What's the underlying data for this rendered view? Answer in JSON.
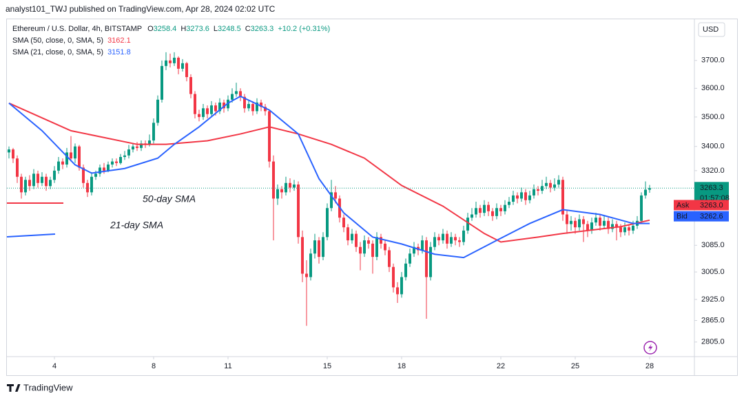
{
  "header": "analyst101_TWJ published on TradingView.com, Apr 28, 2024 02:02 UTC",
  "footer": "TradingView",
  "chart_data": {
    "type": "candlestick",
    "title": "Ethereum / U.S. Dollar, 4h, BITSTAMP",
    "ohlc_labels": [
      "O",
      "H",
      "L",
      "C"
    ],
    "change": "+10.2 (+0.31%)",
    "currency": "USD",
    "countdown": "01:57:08",
    "ask_label": "Ask",
    "ask": 3263.0,
    "ask_text": "3263.0",
    "bid_label": "Bid",
    "bid": 3262.6,
    "up_color": "#089981",
    "down_color": "#f23645",
    "log_scale": true,
    "grid": false,
    "ylim": [
      2765,
      3853
    ],
    "yticks": [
      {
        "value": 3700,
        "label": "3700.0"
      },
      {
        "value": 3600,
        "label": "3600.0"
      },
      {
        "value": 3500,
        "label": "3500.0"
      },
      {
        "value": 3400,
        "label": "3400.0"
      },
      {
        "value": 3320,
        "label": "3320.0"
      },
      {
        "value": 3085,
        "label": "3085.0"
      },
      {
        "value": 3005,
        "label": "3005.0"
      },
      {
        "value": 2925,
        "label": "2925.0"
      },
      {
        "value": 2865,
        "label": "2865.0"
      },
      {
        "value": 2805,
        "label": "2805.0"
      }
    ],
    "xlim": [
      -0.5,
      165
    ],
    "xticks": [
      {
        "value": 11,
        "label": "4"
      },
      {
        "value": 35,
        "label": "8"
      },
      {
        "value": 53,
        "label": "11"
      },
      {
        "value": 77,
        "label": "15"
      },
      {
        "value": 95,
        "label": "18"
      },
      {
        "value": 119,
        "label": "22"
      },
      {
        "value": 137,
        "label": "25"
      },
      {
        "value": 155,
        "label": "28"
      }
    ],
    "annotations": [
      {
        "text": "50-day SMA",
        "color": "#f23645"
      },
      {
        "text": "21-day SMA",
        "color": "#2962ff"
      }
    ],
    "ohlc": [
      [
        3380,
        3400,
        3360,
        3390
      ],
      [
        3390,
        3395,
        3345,
        3360
      ],
      [
        3360,
        3370,
        3280,
        3300
      ],
      [
        3300,
        3310,
        3230,
        3250
      ],
      [
        3250,
        3300,
        3240,
        3290
      ],
      [
        3290,
        3305,
        3255,
        3270
      ],
      [
        3270,
        3325,
        3260,
        3310
      ],
      [
        3310,
        3320,
        3265,
        3280
      ],
      [
        3280,
        3315,
        3270,
        3300
      ],
      [
        3300,
        3310,
        3255,
        3270
      ],
      [
        3270,
        3300,
        3260,
        3290
      ],
      [
        3290,
        3335,
        3280,
        3320
      ],
      [
        3320,
        3365,
        3310,
        3350
      ],
      [
        3350,
        3360,
        3325,
        3340
      ],
      [
        3340,
        3395,
        3330,
        3380
      ],
      [
        3380,
        3435,
        3350,
        3360
      ],
      [
        3360,
        3410,
        3345,
        3400
      ],
      [
        3400,
        3405,
        3320,
        3330
      ],
      [
        3330,
        3340,
        3265,
        3280
      ],
      [
        3280,
        3290,
        3235,
        3250
      ],
      [
        3250,
        3315,
        3240,
        3300
      ],
      [
        3300,
        3320,
        3290,
        3310
      ],
      [
        3310,
        3340,
        3300,
        3330
      ],
      [
        3330,
        3345,
        3310,
        3320
      ],
      [
        3320,
        3350,
        3315,
        3340
      ],
      [
        3340,
        3360,
        3330,
        3350
      ],
      [
        3350,
        3360,
        3335,
        3345
      ],
      [
        3345,
        3375,
        3340,
        3365
      ],
      [
        3365,
        3385,
        3355,
        3370
      ],
      [
        3370,
        3405,
        3360,
        3390
      ],
      [
        3390,
        3410,
        3380,
        3400
      ],
      [
        3400,
        3415,
        3385,
        3395
      ],
      [
        3395,
        3420,
        3385,
        3410
      ],
      [
        3410,
        3420,
        3395,
        3405
      ],
      [
        3405,
        3440,
        3400,
        3420
      ],
      [
        3420,
        3495,
        3410,
        3480
      ],
      [
        3480,
        3575,
        3470,
        3560
      ],
      [
        3560,
        3700,
        3550,
        3680
      ],
      [
        3680,
        3730,
        3665,
        3700
      ],
      [
        3700,
        3725,
        3675,
        3690
      ],
      [
        3690,
        3730,
        3680,
        3710
      ],
      [
        3710,
        3715,
        3650,
        3670
      ],
      [
        3670,
        3705,
        3660,
        3690
      ],
      [
        3690,
        3695,
        3625,
        3640
      ],
      [
        3640,
        3650,
        3565,
        3580
      ],
      [
        3580,
        3590,
        3495,
        3510
      ],
      [
        3510,
        3525,
        3485,
        3500
      ],
      [
        3500,
        3545,
        3490,
        3530
      ],
      [
        3530,
        3540,
        3495,
        3510
      ],
      [
        3510,
        3555,
        3500,
        3540
      ],
      [
        3540,
        3550,
        3505,
        3520
      ],
      [
        3520,
        3565,
        3510,
        3550
      ],
      [
        3550,
        3560,
        3515,
        3530
      ],
      [
        3530,
        3575,
        3520,
        3560
      ],
      [
        3560,
        3600,
        3550,
        3580
      ],
      [
        3580,
        3620,
        3570,
        3590
      ],
      [
        3590,
        3600,
        3555,
        3570
      ],
      [
        3570,
        3580,
        3515,
        3530
      ],
      [
        3530,
        3560,
        3520,
        3545
      ],
      [
        3545,
        3555,
        3505,
        3520
      ],
      [
        3520,
        3565,
        3510,
        3550
      ],
      [
        3550,
        3560,
        3520,
        3535
      ],
      [
        3535,
        3545,
        3505,
        3520
      ],
      [
        3520,
        3525,
        3330,
        3350
      ],
      [
        3350,
        3370,
        3100,
        3230
      ],
      [
        3230,
        3275,
        3210,
        3260
      ],
      [
        3260,
        3270,
        3230,
        3250
      ],
      [
        3250,
        3300,
        3240,
        3280
      ],
      [
        3280,
        3295,
        3250,
        3265
      ],
      [
        3265,
        3290,
        3255,
        3275
      ],
      [
        3275,
        3285,
        3090,
        3110
      ],
      [
        3110,
        3130,
        2975,
        3000
      ],
      [
        3000,
        3040,
        2850,
        2990
      ],
      [
        2990,
        3075,
        2980,
        3060
      ],
      [
        3060,
        3120,
        3045,
        3100
      ],
      [
        3100,
        3110,
        3030,
        3050
      ],
      [
        3050,
        3125,
        3040,
        3110
      ],
      [
        3110,
        3215,
        3100,
        3200
      ],
      [
        3200,
        3290,
        3190,
        3250
      ],
      [
        3250,
        3270,
        3215,
        3230
      ],
      [
        3230,
        3240,
        3155,
        3170
      ],
      [
        3170,
        3180,
        3125,
        3140
      ],
      [
        3140,
        3150,
        3085,
        3100
      ],
      [
        3100,
        3135,
        3090,
        3120
      ],
      [
        3120,
        3130,
        3065,
        3080
      ],
      [
        3080,
        3095,
        3010,
        3060
      ],
      [
        3060,
        3115,
        3050,
        3100
      ],
      [
        3100,
        3110,
        3075,
        3090
      ],
      [
        3090,
        3100,
        3000,
        3050
      ],
      [
        3050,
        3125,
        3040,
        3110
      ],
      [
        3110,
        3120,
        3075,
        3090
      ],
      [
        3090,
        3100,
        3055,
        3070
      ],
      [
        3070,
        3080,
        3005,
        3020
      ],
      [
        3020,
        3030,
        2945,
        2960
      ],
      [
        2960,
        2975,
        2915,
        2940
      ],
      [
        2940,
        3005,
        2930,
        2990
      ],
      [
        2990,
        3045,
        2980,
        3030
      ],
      [
        3030,
        3075,
        3020,
        3060
      ],
      [
        3060,
        3095,
        3050,
        3080
      ],
      [
        3080,
        3090,
        3055,
        3070
      ],
      [
        3070,
        3115,
        3060,
        3100
      ],
      [
        3100,
        3110,
        2870,
        2990
      ],
      [
        2990,
        3095,
        2980,
        3080
      ],
      [
        3080,
        3125,
        3070,
        3110
      ],
      [
        3110,
        3120,
        3085,
        3100
      ],
      [
        3100,
        3135,
        3090,
        3120
      ],
      [
        3120,
        3130,
        3075,
        3090
      ],
      [
        3090,
        3125,
        3080,
        3110
      ],
      [
        3110,
        3120,
        3085,
        3100
      ],
      [
        3100,
        3110,
        3080,
        3095
      ],
      [
        3095,
        3145,
        3085,
        3130
      ],
      [
        3130,
        3185,
        3120,
        3170
      ],
      [
        3170,
        3200,
        3160,
        3180
      ],
      [
        3180,
        3220,
        3170,
        3200
      ],
      [
        3200,
        3210,
        3170,
        3185
      ],
      [
        3185,
        3225,
        3175,
        3210
      ],
      [
        3210,
        3220,
        3175,
        3190
      ],
      [
        3190,
        3200,
        3160,
        3175
      ],
      [
        3175,
        3215,
        3165,
        3200
      ],
      [
        3200,
        3210,
        3175,
        3190
      ],
      [
        3190,
        3225,
        3180,
        3210
      ],
      [
        3210,
        3235,
        3200,
        3220
      ],
      [
        3220,
        3255,
        3210,
        3240
      ],
      [
        3240,
        3250,
        3215,
        3230
      ],
      [
        3230,
        3265,
        3220,
        3250
      ],
      [
        3250,
        3260,
        3210,
        3225
      ],
      [
        3225,
        3255,
        3215,
        3240
      ],
      [
        3240,
        3275,
        3230,
        3260
      ],
      [
        3260,
        3270,
        3240,
        3255
      ],
      [
        3255,
        3290,
        3245,
        3270
      ],
      [
        3270,
        3300,
        3260,
        3280
      ],
      [
        3280,
        3290,
        3250,
        3265
      ],
      [
        3265,
        3295,
        3255,
        3275
      ],
      [
        3275,
        3305,
        3265,
        3290
      ],
      [
        3290,
        3300,
        3160,
        3180
      ],
      [
        3180,
        3195,
        3120,
        3150
      ],
      [
        3150,
        3175,
        3130,
        3160
      ],
      [
        3160,
        3170,
        3120,
        3140
      ],
      [
        3140,
        3180,
        3130,
        3165
      ],
      [
        3165,
        3175,
        3095,
        3150
      ],
      [
        3150,
        3160,
        3110,
        3130
      ],
      [
        3130,
        3170,
        3120,
        3155
      ],
      [
        3155,
        3185,
        3145,
        3170
      ],
      [
        3170,
        3180,
        3130,
        3145
      ],
      [
        3145,
        3175,
        3135,
        3160
      ],
      [
        3160,
        3170,
        3120,
        3135
      ],
      [
        3135,
        3165,
        3125,
        3150
      ],
      [
        3150,
        3160,
        3100,
        3140
      ],
      [
        3140,
        3150,
        3110,
        3125
      ],
      [
        3125,
        3155,
        3115,
        3140
      ],
      [
        3140,
        3150,
        3115,
        3130
      ],
      [
        3130,
        3160,
        3120,
        3145
      ],
      [
        3145,
        3175,
        3135,
        3160
      ],
      [
        3160,
        3250,
        3150,
        3240
      ],
      [
        3240,
        3285,
        3230,
        3258.4
      ],
      [
        3258.4,
        3273.6,
        3248.5,
        3263.3
      ]
    ],
    "series": [
      {
        "name": "SMA (50, close, 0, SMA, 5)",
        "color": "#f23645",
        "x": [
          0,
          15,
          31,
          38,
          48,
          56,
          63,
          70,
          78,
          86,
          95,
          105,
          115,
          119,
          128,
          134,
          148,
          155
        ],
        "values": [
          3548,
          3453,
          3407,
          3407,
          3419,
          3442,
          3466,
          3442,
          3407,
          3361,
          3272,
          3206,
          3121,
          3095,
          3110,
          3121,
          3142,
          3162.1
        ]
      },
      {
        "name": "SMA (21, close, 0, SMA, 5)",
        "color": "#2962ff",
        "x": [
          0,
          8,
          16,
          20,
          28,
          36,
          40,
          46,
          53,
          56,
          63,
          70,
          75,
          81,
          88,
          95,
          103,
          110,
          118,
          126,
          134,
          143,
          151,
          155
        ],
        "values": [
          3548,
          3453,
          3339,
          3312,
          3327,
          3361,
          3407,
          3466,
          3548,
          3572,
          3524,
          3442,
          3294,
          3185,
          3110,
          3089,
          3058,
          3048,
          3100,
          3152,
          3195,
          3180,
          3152,
          3151.8
        ]
      }
    ]
  }
}
